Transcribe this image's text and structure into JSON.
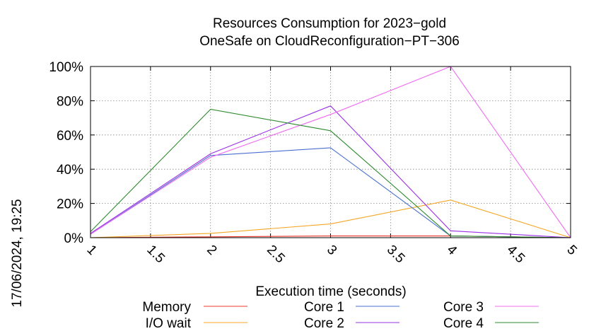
{
  "side_label": "17/06/2024, 19:25",
  "chart_data": {
    "type": "line",
    "title": [
      "Resources Consumption for 2023−gold",
      "OneSafe on CloudReconfiguration−PT−306"
    ],
    "xlabel": "Execution time (seconds)",
    "ylabel": "",
    "x": [
      1,
      2,
      3,
      4,
      5
    ],
    "xlim": [
      1,
      5
    ],
    "ylim": [
      0,
      100
    ],
    "xticks": [
      "1",
      "1.5",
      "2",
      "2.5",
      "3",
      "3.5",
      "4",
      "4.5",
      "5"
    ],
    "yticks": [
      "0%",
      "20%",
      "40%",
      "60%",
      "80%",
      "100%"
    ],
    "grid": true,
    "legend_position": "bottom",
    "series": [
      {
        "name": "Memory",
        "color": "#e8372a",
        "values": [
          0,
          0.5,
          1,
          1,
          0
        ]
      },
      {
        "name": "I/O wait",
        "color": "#f5a623",
        "values": [
          0,
          2.5,
          8,
          22,
          0
        ]
      },
      {
        "name": "Core 1",
        "color": "#4a6fcf",
        "values": [
          2,
          48,
          52.5,
          1,
          0
        ]
      },
      {
        "name": "Core 2",
        "color": "#9b30e6",
        "values": [
          2.5,
          49,
          77,
          4,
          0
        ]
      },
      {
        "name": "Core 3",
        "color": "#f06cf0",
        "values": [
          2,
          47,
          72,
          100,
          0
        ]
      },
      {
        "name": "Core 4",
        "color": "#2e8b2e",
        "values": [
          3.5,
          75,
          62.5,
          1,
          0
        ]
      }
    ]
  }
}
